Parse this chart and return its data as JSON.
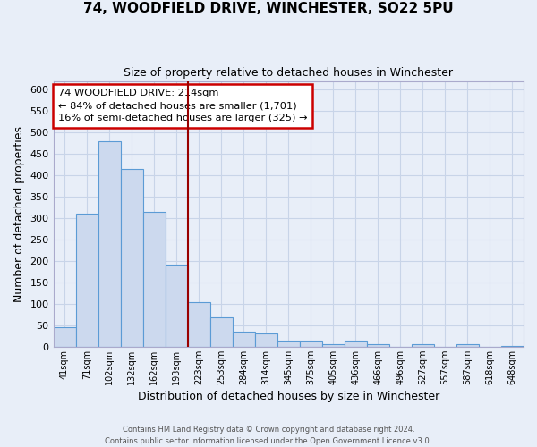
{
  "title": "74, WOODFIELD DRIVE, WINCHESTER, SO22 5PU",
  "subtitle": "Size of property relative to detached houses in Winchester",
  "xlabel": "Distribution of detached houses by size in Winchester",
  "ylabel": "Number of detached properties",
  "bar_labels": [
    "41sqm",
    "71sqm",
    "102sqm",
    "132sqm",
    "162sqm",
    "193sqm",
    "223sqm",
    "253sqm",
    "284sqm",
    "314sqm",
    "345sqm",
    "375sqm",
    "405sqm",
    "436sqm",
    "466sqm",
    "496sqm",
    "527sqm",
    "557sqm",
    "587sqm",
    "618sqm",
    "648sqm"
  ],
  "bar_values": [
    46,
    311,
    480,
    414,
    314,
    192,
    104,
    69,
    35,
    30,
    14,
    14,
    5,
    14,
    5,
    0,
    5,
    0,
    5,
    0,
    2
  ],
  "bar_color": "#ccd9ee",
  "bar_edge_color": "#5b9bd5",
  "vline_color": "#990000",
  "annotation_line1": "74 WOODFIELD DRIVE: 214sqm",
  "annotation_line2": "← 84% of detached houses are smaller (1,701)",
  "annotation_line3": "16% of semi-detached houses are larger (325) →",
  "annotation_box_color": "#ffffff",
  "annotation_box_edge_color": "#cc0000",
  "ylim": [
    0,
    620
  ],
  "yticks": [
    0,
    50,
    100,
    150,
    200,
    250,
    300,
    350,
    400,
    450,
    500,
    550,
    600
  ],
  "grid_color": "#c8d4e8",
  "background_color": "#e8eef8",
  "footer_line1": "Contains HM Land Registry data © Crown copyright and database right 2024.",
  "footer_line2": "Contains public sector information licensed under the Open Government Licence v3.0."
}
